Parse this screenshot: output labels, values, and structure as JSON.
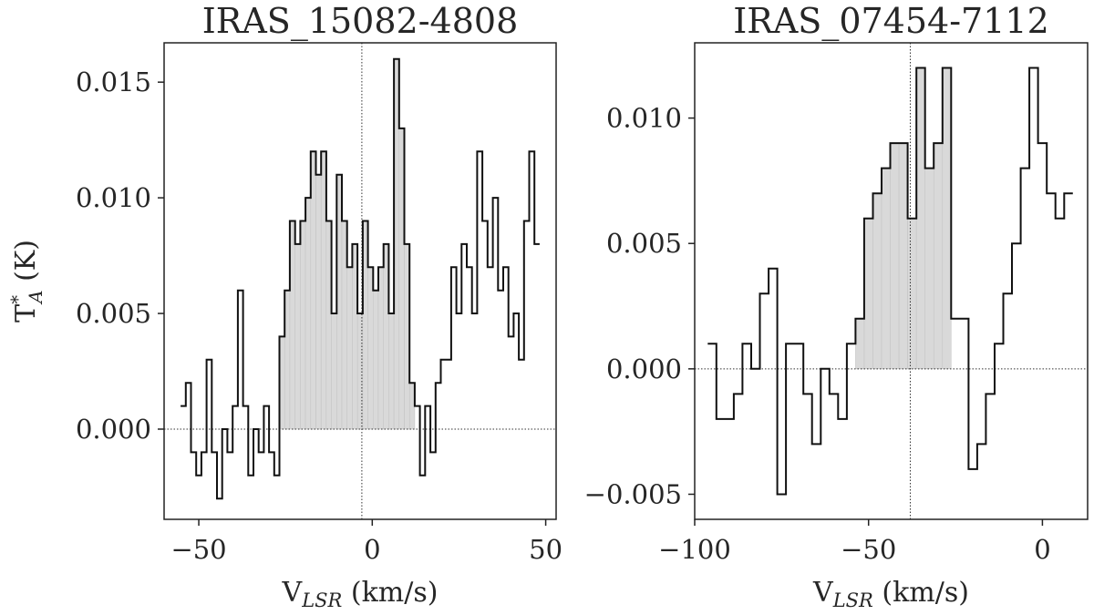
{
  "chart_data": [
    {
      "type": "line",
      "subtype": "histogram-step",
      "title": "IRAS_15082-4808",
      "ylabel": "T",
      "ylabel_sup": "*",
      "ylabel_sub": "A",
      "ylabel_unit": " (K)",
      "xlabel": "V",
      "xlabel_sub": "LSR",
      "xlabel_unit": " (km/s)",
      "xlim": [
        -60,
        53
      ],
      "ylim": [
        -0.0039,
        0.0167
      ],
      "xticks": [
        -50,
        0,
        50
      ],
      "xtick_labels": [
        "−50",
        "0",
        "50"
      ],
      "yticks": [
        0.0,
        0.005,
        0.01,
        0.015
      ],
      "ytick_labels": [
        "0.000",
        "0.005",
        "0.010",
        "0.015"
      ],
      "vline_x": -3,
      "hline_y": 0,
      "shade_range": [
        -26,
        12
      ],
      "bin_width": 1.5,
      "x": [
        -54.5,
        -53,
        -51.5,
        -50,
        -48.5,
        -47,
        -45.5,
        -44,
        -42.5,
        -41,
        -39.5,
        -38,
        -36.5,
        -35,
        -33.5,
        -32,
        -30.5,
        -29,
        -27.5,
        -26,
        -24.5,
        -23,
        -21.5,
        -20,
        -18.5,
        -17,
        -15.5,
        -14,
        -12.5,
        -11,
        -9.5,
        -8,
        -6.5,
        -5,
        -3.5,
        -2,
        -0.5,
        1,
        2.5,
        4,
        5.5,
        7,
        8.5,
        10,
        11.5,
        13,
        14.5,
        16,
        17.5,
        19,
        20.5,
        22,
        23.5,
        25,
        26.5,
        28,
        29.5,
        31,
        32.5,
        34,
        35.5,
        37,
        38.5,
        40,
        41.5,
        43,
        44.5,
        46,
        47.5
      ],
      "values": [
        0.001,
        0.002,
        -0.001,
        -0.002,
        -0.001,
        0.003,
        -0.001,
        -0.003,
        0.0,
        -0.001,
        0.001,
        0.006,
        0.001,
        -0.002,
        0.0,
        -0.001,
        0.001,
        -0.001,
        -0.002,
        0.004,
        0.006,
        0.009,
        0.008,
        0.009,
        0.01,
        0.012,
        0.011,
        0.012,
        0.009,
        0.005,
        0.011,
        0.009,
        0.007,
        0.008,
        0.005,
        0.009,
        0.007,
        0.006,
        0.007,
        0.008,
        0.005,
        0.016,
        0.013,
        0.008,
        0.002,
        0.001,
        -0.002,
        0.001,
        -0.001,
        0.002,
        0.003,
        0.003,
        0.007,
        0.005,
        0.008,
        0.007,
        0.005,
        0.012,
        0.009,
        0.007,
        0.01,
        0.006,
        0.007,
        0.004,
        0.005,
        0.003,
        0.009,
        0.012,
        0.008
      ]
    },
    {
      "type": "line",
      "subtype": "histogram-step",
      "title": "IRAS_07454-7112",
      "xlabel": "V",
      "xlabel_sub": "LSR",
      "xlabel_unit": " (km/s)",
      "xlim": [
        -100,
        13
      ],
      "ylim": [
        -0.006,
        0.013
      ],
      "xticks": [
        -100,
        -50,
        0
      ],
      "xtick_labels": [
        "−100",
        "−50",
        "0"
      ],
      "yticks": [
        -0.005,
        0.0,
        0.005,
        0.01
      ],
      "ytick_labels": [
        "−0.005",
        "0.000",
        "0.005",
        "0.010"
      ],
      "vline_x": -38,
      "hline_y": 0,
      "shade_range": [
        -53,
        -26
      ],
      "bin_width": 2.5,
      "x": [
        -95,
        -92.5,
        -90,
        -87.5,
        -85,
        -82.5,
        -80,
        -77.5,
        -75,
        -72.5,
        -70,
        -67.5,
        -65,
        -62.5,
        -60,
        -57.5,
        -55,
        -52.5,
        -50,
        -47.5,
        -45,
        -42.5,
        -40,
        -37.5,
        -35,
        -32.5,
        -30,
        -27.5,
        -25,
        -22.5,
        -20,
        -17.5,
        -15,
        -12.5,
        -10,
        -7.5,
        -5,
        -2.5,
        0,
        2.5,
        5,
        7.5
      ],
      "values": [
        0.001,
        -0.002,
        -0.002,
        -0.001,
        0.001,
        0.0,
        0.003,
        0.004,
        -0.005,
        0.001,
        0.001,
        -0.001,
        -0.003,
        0.0,
        -0.001,
        -0.002,
        0.001,
        0.002,
        0.006,
        0.007,
        0.008,
        0.009,
        0.009,
        0.006,
        0.012,
        0.008,
        0.009,
        0.012,
        0.002,
        0.002,
        -0.004,
        -0.003,
        -0.001,
        0.001,
        0.003,
        0.005,
        0.008,
        0.012,
        0.009,
        0.007,
        0.006,
        0.007
      ]
    }
  ]
}
